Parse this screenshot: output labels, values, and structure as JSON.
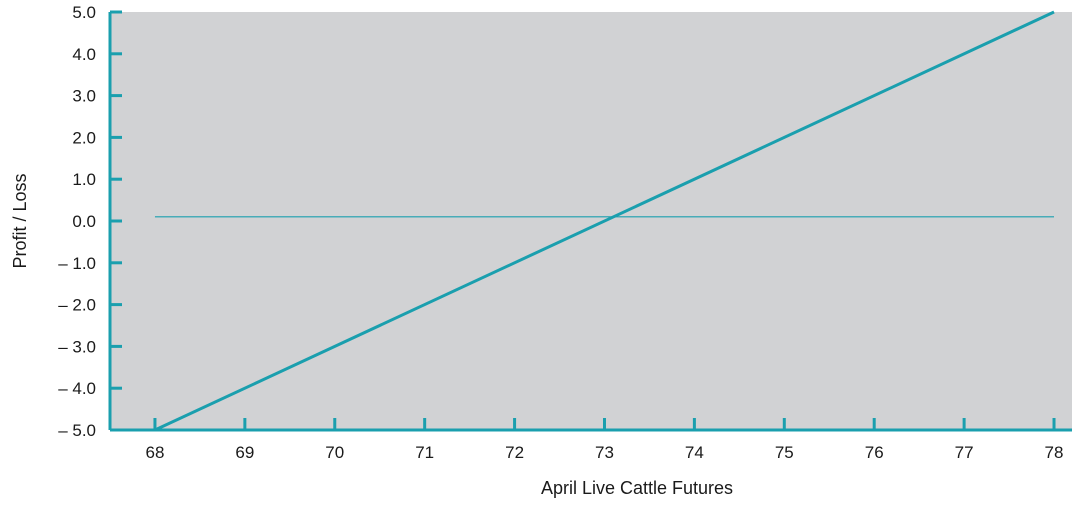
{
  "chart_data": {
    "type": "line",
    "title": "",
    "xlabel": "April Live Cattle Futures",
    "ylabel": "Profit / Loss",
    "xlim": [
      67.5,
      78.2
    ],
    "ylim": [
      -5.0,
      5.0
    ],
    "x_ticks": [
      "68",
      "69",
      "70",
      "71",
      "72",
      "73",
      "74",
      "75",
      "76",
      "77",
      "78"
    ],
    "y_ticks": [
      "5.0",
      "4.0",
      "3.0",
      "2.0",
      "1.0",
      "0.0",
      "– 1.0",
      "– 2.0",
      "– 3.0",
      "– 4.0",
      "– 5.0"
    ],
    "y_tick_values": [
      5,
      4,
      3,
      2,
      1,
      0,
      -1,
      -2,
      -3,
      -4,
      -5
    ],
    "series": [
      {
        "x": [
          68,
          78
        ],
        "y": [
          -5.0,
          5.0
        ]
      }
    ],
    "reference_line": {
      "y": 0.1,
      "x": [
        68,
        78
      ]
    },
    "grid": false,
    "colors": {
      "plot_background": "#d1d2d4",
      "accent": "#1a9fae",
      "text": "#1a1a1a"
    }
  }
}
